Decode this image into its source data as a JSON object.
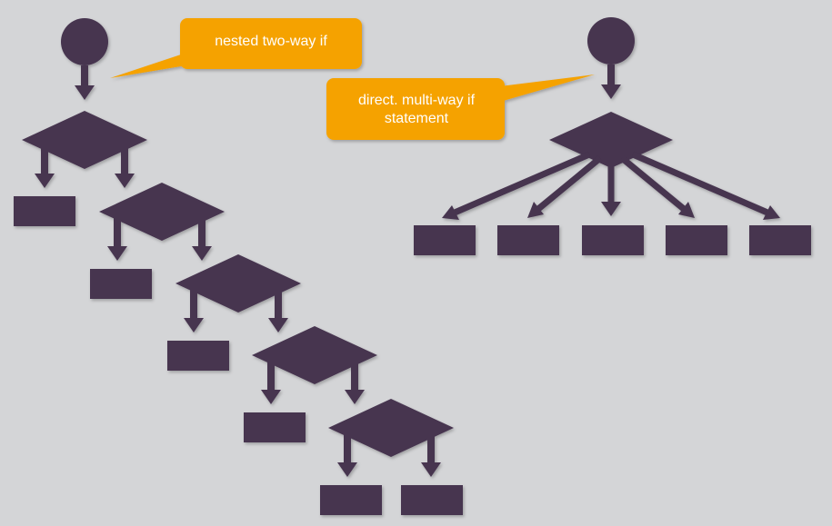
{
  "colors": {
    "background": "#d4d5d7",
    "shape_fill": "#46344f",
    "callout_fill": "#f5a200",
    "callout_text": "#ffffff"
  },
  "callouts": {
    "nested": {
      "text": "nested two-way if"
    },
    "direct": {
      "text": "direct. multi-way if statement"
    }
  },
  "nested_flowchart": {
    "start_node": "circle",
    "decision_count": 5,
    "terminal_box_count": 6
  },
  "multiway_flowchart": {
    "start_node": "circle",
    "decision_count": 1,
    "branch_count": 5
  }
}
